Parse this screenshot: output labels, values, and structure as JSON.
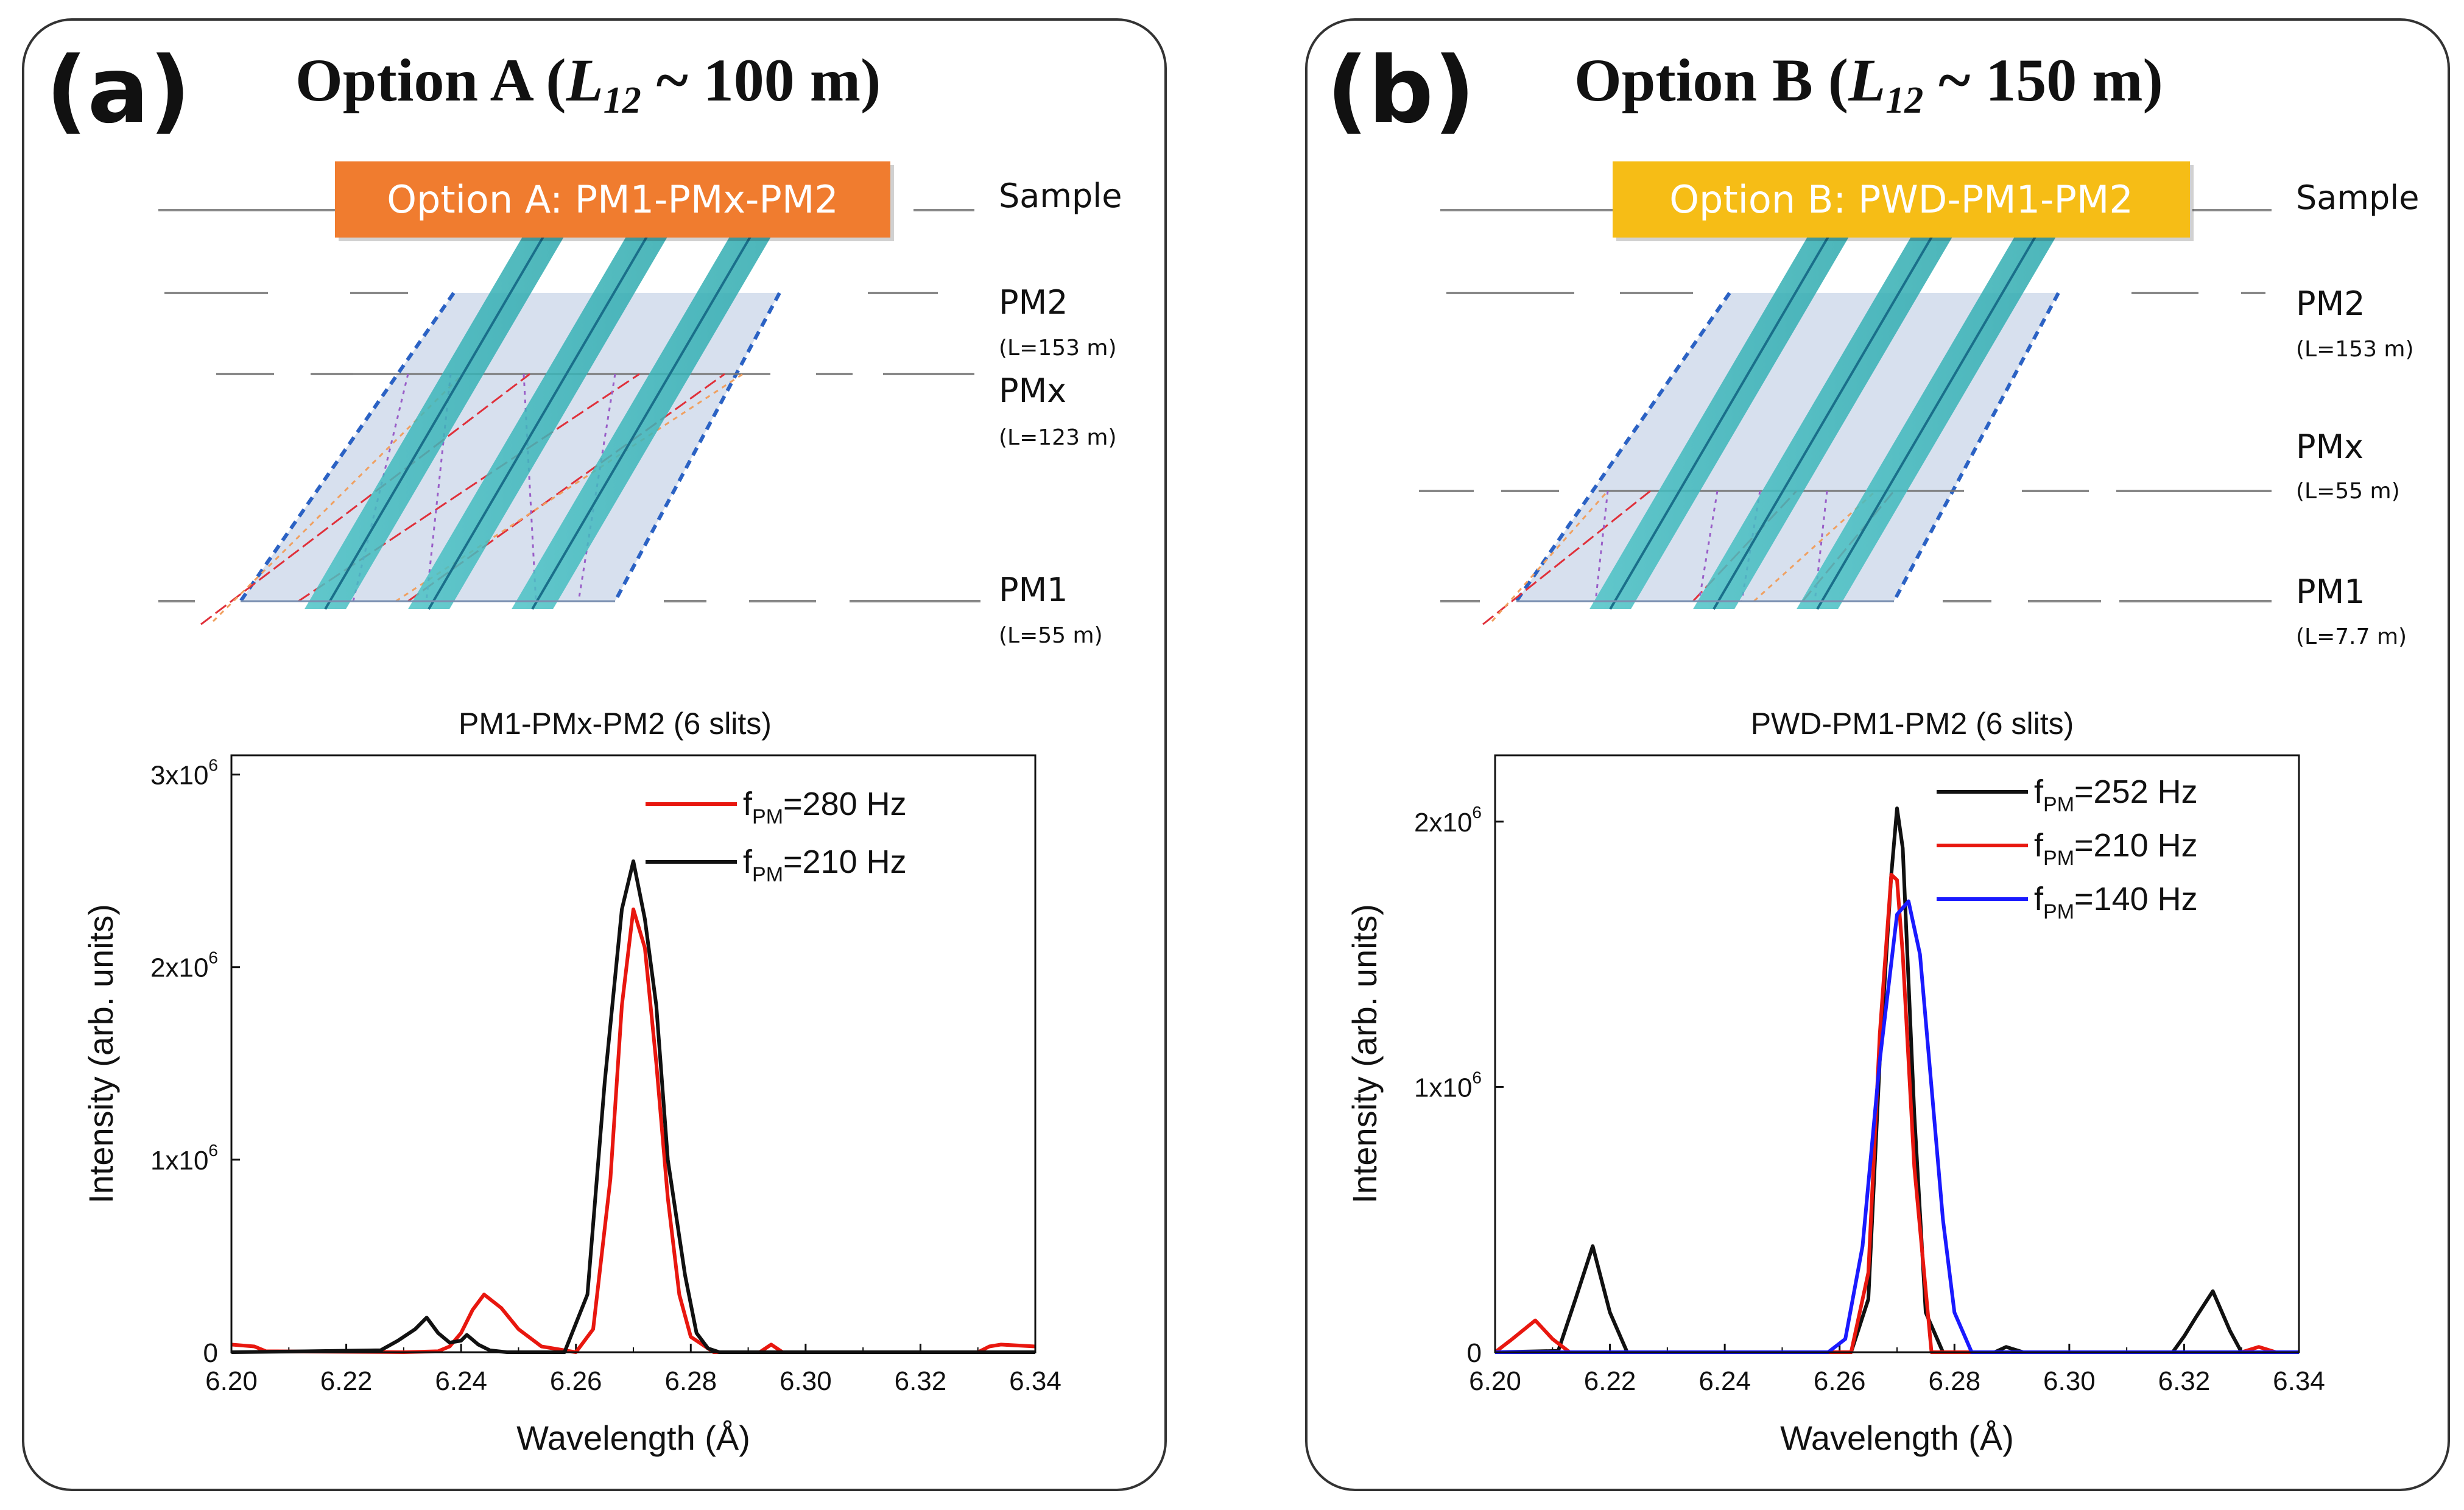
{
  "panels": [
    {
      "letter": "(a)",
      "title_prefix": "Option A (",
      "title_var": "L",
      "title_sub": "12",
      "title_suffix": " ~ 100 m)",
      "banner": {
        "text": "Option A: PM1-PMx-PM2",
        "color": "#f07c2f"
      },
      "levels": [
        {
          "name": "Sample",
          "detail": ""
        },
        {
          "name": "PM2",
          "detail": "(L=153 m)"
        },
        {
          "name": "PMx",
          "detail": "(L=123 m)"
        },
        {
          "name": "PM1",
          "detail": "(L=55 m)"
        }
      ]
    },
    {
      "letter": "(b)",
      "title_prefix": "Option B (",
      "title_var": "L",
      "title_sub": "12",
      "title_suffix": " ~ 150 m)",
      "banner": {
        "text": "Option B: PWD-PM1-PM2",
        "color": "#f6bd16"
      },
      "levels": [
        {
          "name": "Sample",
          "detail": ""
        },
        {
          "name": "PM2",
          "detail": "(L=153 m)"
        },
        {
          "name": "PMx",
          "detail": "(L=55 m)"
        },
        {
          "name": "PM1",
          "detail": "(L=7.7 m)"
        }
      ]
    }
  ],
  "chart_data": [
    {
      "type": "line",
      "title": "PM1-PMx-PM2 (6 slits)",
      "xlabel": "Wavelength (Å)",
      "ylabel": "Intensity (arb. units)",
      "xlim": [
        6.2,
        6.34
      ],
      "ylim": [
        0,
        3100000
      ],
      "xticks": [
        "6.20",
        "6.22",
        "6.24",
        "6.26",
        "6.28",
        "6.30",
        "6.32",
        "6.34"
      ],
      "yticks": [
        {
          "value": 0,
          "label": "0"
        },
        {
          "value": 1000000,
          "label": "1x10",
          "exp": "6"
        },
        {
          "value": 2000000,
          "label": "2x10",
          "exp": "6"
        },
        {
          "value": 3000000,
          "label": "3x10",
          "exp": "6"
        }
      ],
      "legend_position": "top-right",
      "series": [
        {
          "name": "fPM=280 Hz",
          "legend_main": "f",
          "legend_sub": "PM",
          "legend_rest": "=280 Hz",
          "color": "#e8170f",
          "x": [
            6.2,
            6.204,
            6.206,
            6.23,
            6.236,
            6.238,
            6.24,
            6.242,
            6.244,
            6.247,
            6.25,
            6.254,
            6.26,
            6.263,
            6.266,
            6.268,
            6.27,
            6.272,
            6.274,
            6.276,
            6.278,
            6.28,
            6.284,
            6.292,
            6.294,
            6.296,
            6.3,
            6.32,
            6.33,
            6.332,
            6.334,
            6.34
          ],
          "y": [
            40000,
            30000,
            5000,
            0,
            5000,
            30000,
            100000,
            220000,
            300000,
            230000,
            120000,
            30000,
            0,
            120000,
            900000,
            1800000,
            2300000,
            2100000,
            1500000,
            800000,
            300000,
            80000,
            0,
            0,
            40000,
            0,
            0,
            0,
            0,
            30000,
            40000,
            30000
          ]
        },
        {
          "name": "fPM=210 Hz",
          "legend_main": "f",
          "legend_sub": "PM",
          "legend_rest": "=210 Hz",
          "color": "#111111",
          "x": [
            6.2,
            6.226,
            6.229,
            6.232,
            6.234,
            6.236,
            6.238,
            6.24,
            6.241,
            6.243,
            6.245,
            6.248,
            6.258,
            6.262,
            6.265,
            6.268,
            6.27,
            6.272,
            6.274,
            6.276,
            6.277,
            6.279,
            6.281,
            6.283,
            6.285,
            6.3,
            6.34
          ],
          "y": [
            0,
            10000,
            60000,
            120000,
            180000,
            100000,
            50000,
            60000,
            90000,
            40000,
            10000,
            0,
            0,
            300000,
            1400000,
            2300000,
            2550000,
            2250000,
            1800000,
            1000000,
            800000,
            400000,
            100000,
            20000,
            0,
            0,
            0
          ]
        }
      ]
    },
    {
      "type": "line",
      "title": "PWD-PM1-PM2 (6 slits)",
      "xlabel": "Wavelength (Å)",
      "ylabel": "Intensity (arb. units)",
      "xlim": [
        6.2,
        6.34
      ],
      "ylim": [
        0,
        2250000
      ],
      "xticks": [
        "6.20",
        "6.22",
        "6.24",
        "6.26",
        "6.28",
        "6.30",
        "6.32",
        "6.34"
      ],
      "yticks": [
        {
          "value": 0,
          "label": "0"
        },
        {
          "value": 1000000,
          "label": "1x10",
          "exp": "6"
        },
        {
          "value": 2000000,
          "label": "2x10",
          "exp": "6"
        }
      ],
      "legend_position": "top-right",
      "series": [
        {
          "name": "fPM=252 Hz",
          "legend_main": "f",
          "legend_sub": "PM",
          "legend_rest": "=252 Hz",
          "color": "#111111",
          "x": [
            6.2,
            6.211,
            6.214,
            6.217,
            6.22,
            6.223,
            6.262,
            6.265,
            6.267,
            6.269,
            6.27,
            6.271,
            6.273,
            6.275,
            6.278,
            6.287,
            6.289,
            6.292,
            6.318,
            6.32,
            6.322,
            6.325,
            6.328,
            6.33,
            6.34
          ],
          "y": [
            0,
            5000,
            200000,
            400000,
            150000,
            0,
            0,
            200000,
            1100000,
            1800000,
            2050000,
            1900000,
            900000,
            150000,
            0,
            0,
            20000,
            0,
            0,
            60000,
            130000,
            230000,
            80000,
            0,
            0
          ]
        },
        {
          "name": "fPM=210 Hz",
          "legend_main": "f",
          "legend_sub": "PM",
          "legend_rest": "=210 Hz",
          "color": "#e8170f",
          "x": [
            6.2,
            6.203,
            6.207,
            6.21,
            6.213,
            6.262,
            6.265,
            6.267,
            6.269,
            6.27,
            6.271,
            6.273,
            6.276,
            6.33,
            6.333,
            6.336
          ],
          "y": [
            0,
            50000,
            120000,
            50000,
            0,
            0,
            300000,
            1200000,
            1800000,
            1780000,
            1500000,
            700000,
            0,
            0,
            20000,
            0
          ]
        },
        {
          "name": "fPM=140 Hz",
          "legend_main": "f",
          "legend_sub": "PM",
          "legend_rest": "=140 Hz",
          "color": "#1a1aff",
          "x": [
            6.2,
            6.258,
            6.261,
            6.264,
            6.267,
            6.27,
            6.272,
            6.274,
            6.276,
            6.278,
            6.28,
            6.283,
            6.34
          ],
          "y": [
            0,
            0,
            50000,
            400000,
            1100000,
            1650000,
            1700000,
            1500000,
            1000000,
            500000,
            150000,
            0,
            0
          ]
        }
      ]
    }
  ]
}
